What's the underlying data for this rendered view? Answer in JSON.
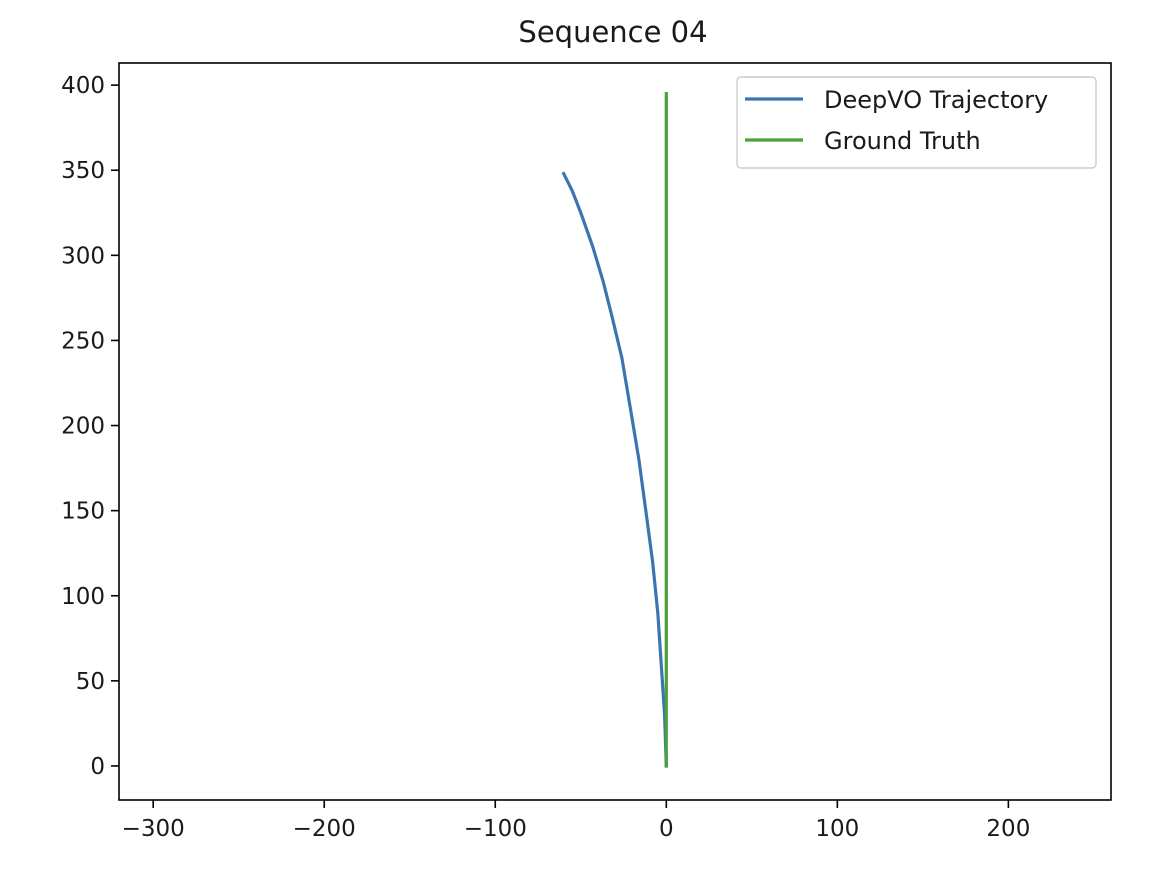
{
  "chart_data": {
    "type": "line",
    "title": "Sequence 04",
    "xlabel": "",
    "ylabel": "",
    "xlim": [
      -320,
      260
    ],
    "ylim": [
      -20,
      413
    ],
    "x_ticks": [
      -300,
      -200,
      -100,
      0,
      100,
      200
    ],
    "x_tick_labels": [
      "−300",
      "−200",
      "−100",
      "0",
      "100",
      "200"
    ],
    "y_ticks": [
      0,
      50,
      100,
      150,
      200,
      250,
      300,
      350,
      400
    ],
    "y_tick_labels": [
      "0",
      "50",
      "100",
      "150",
      "200",
      "250",
      "300",
      "350",
      "400"
    ],
    "grid": false,
    "legend_position": "top-right",
    "series": [
      {
        "name": "DeepVO Trajectory",
        "color": "#3a75b0",
        "x": [
          0,
          -1,
          -3,
          -5,
          -8,
          -12,
          -16,
          -21,
          -26,
          -32,
          -37,
          -43,
          -50,
          -55,
          -60
        ],
        "y": [
          0,
          30,
          60,
          90,
          120,
          150,
          180,
          210,
          240,
          265,
          285,
          305,
          325,
          338,
          348
        ]
      },
      {
        "name": "Ground Truth",
        "color": "#4aa03a",
        "x": [
          0,
          0,
          0,
          0,
          0
        ],
        "y": [
          0,
          100,
          200,
          300,
          395
        ]
      }
    ]
  }
}
